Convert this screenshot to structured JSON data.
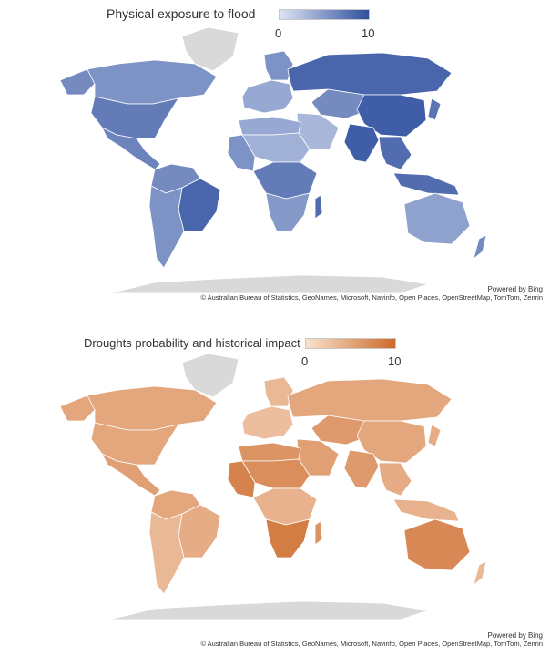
{
  "maps": [
    {
      "legend": {
        "title": "Physical exposure to flood",
        "min_label": "0",
        "max_label": "10",
        "color_low": "#dde4f4",
        "color_high": "#2f4f9e"
      },
      "credits": {
        "powered": "Powered by Bing",
        "attribution": "© Australian Bureau of Statistics, GeoNames, Microsoft, Navinfo, Open Places, OpenStreetMap, TomTom, Zenrin"
      },
      "region_values": {
        "north-america": 7,
        "canada": 5.5,
        "alaska": 6,
        "greenland": 0,
        "central-america": 6.5,
        "south-america-north": 6,
        "brazil": 8.5,
        "south-america-south": 5.5,
        "europe-west": 4,
        "scandinavia": 5.5,
        "russia": 8.5,
        "middle-east": 3,
        "central-asia": 6,
        "china": 9,
        "india": 9,
        "southeast-asia": 8,
        "africa-north": 4,
        "africa-sahara": 3.5,
        "africa-west": 5.5,
        "africa-central": 7,
        "africa-south": 5,
        "madagascar": 8,
        "indonesia": 8,
        "australia": 4.5,
        "new-zealand": 6,
        "japan": 7.5,
        "antarctica": 0
      }
    },
    {
      "legend": {
        "title": "Droughts probability and historical impact",
        "min_label": "0",
        "max_label": "10",
        "color_low": "#f9e2cd",
        "color_high": "#cc6a2c"
      },
      "credits": {
        "powered": "Powered by Bing",
        "attribution": "© Australian Bureau of Statistics, GeoNames, Microsoft, Navinfo, Open Places, OpenStreetMap, TomTom, Zenrin"
      },
      "region_values": {
        "north-america": 5,
        "canada": 5,
        "alaska": 5,
        "greenland": 0,
        "central-america": 5.5,
        "south-america-north": 5,
        "brazil": 4.5,
        "south-america-south": 3.5,
        "europe-west": 3,
        "scandinavia": 3.5,
        "russia": 5,
        "middle-east": 5.5,
        "central-asia": 6,
        "china": 5,
        "india": 6,
        "southeast-asia": 4.5,
        "africa-north": 6.5,
        "africa-sahara": 7,
        "africa-west": 8,
        "africa-central": 4,
        "africa-south": 8.5,
        "madagascar": 6.5,
        "indonesia": 4,
        "australia": 7.5,
        "new-zealand": 3.5,
        "japan": 4.5,
        "antarctica": 0
      }
    }
  ]
}
